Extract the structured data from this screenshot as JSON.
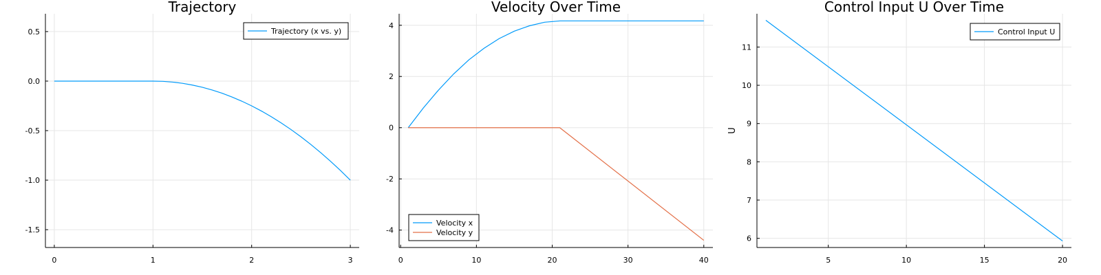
{
  "colors": {
    "series1": "#009AFA",
    "series2": "#E36F47",
    "grid": "#E6E6E6"
  },
  "chart_data": [
    {
      "type": "line",
      "title": "Trajectory",
      "xlabel": "",
      "ylabel": "",
      "xlim": [
        -0.09,
        3.09
      ],
      "ylim": [
        -1.68,
        0.68
      ],
      "xticks": [
        0,
        1,
        2,
        3
      ],
      "yticks": [
        -1.5,
        -1.0,
        -0.5,
        0.0,
        0.5
      ],
      "ytick_labels": [
        "-1.5",
        "-1.0",
        "-0.5",
        "0.0",
        "0.5"
      ],
      "grid": true,
      "legend": "top-right",
      "series": [
        {
          "name": "Trajectory (x vs. y)",
          "color": "#009AFA",
          "x": [
            0,
            0.25,
            0.5,
            0.75,
            1.0,
            1.1,
            1.2,
            1.3,
            1.4,
            1.5,
            1.6,
            1.7,
            1.8,
            1.9,
            2.0,
            2.1,
            2.2,
            2.3,
            2.4,
            2.5,
            2.6,
            2.7,
            2.8,
            2.9,
            3.0
          ],
          "y": [
            0,
            0,
            0,
            0,
            0,
            -0.0025,
            -0.01,
            -0.0225,
            -0.04,
            -0.0625,
            -0.09,
            -0.1225,
            -0.16,
            -0.2025,
            -0.25,
            -0.3025,
            -0.36,
            -0.4225,
            -0.49,
            -0.5625,
            -0.64,
            -0.7225,
            -0.81,
            -0.9025,
            -1.0
          ]
        }
      ]
    },
    {
      "type": "line",
      "title": "Velocity Over Time",
      "xlabel": "",
      "ylabel": "",
      "xlim": [
        -0.2,
        41.2
      ],
      "ylim": [
        -4.68,
        4.45
      ],
      "xticks": [
        0,
        10,
        20,
        30,
        40
      ],
      "yticks": [
        -4,
        -2,
        0,
        2,
        4
      ],
      "ytick_labels": [
        "-4",
        "-2",
        "0",
        "2",
        "4"
      ],
      "grid": true,
      "legend": "bottom-left",
      "series": [
        {
          "name": "Velocity x",
          "color": "#009AFA",
          "x": [
            1,
            3,
            5,
            7,
            9,
            11,
            13,
            15,
            17,
            19,
            21,
            40
          ],
          "y": [
            0,
            0.77,
            1.47,
            2.1,
            2.65,
            3.1,
            3.48,
            3.77,
            3.98,
            4.12,
            4.17,
            4.17
          ]
        },
        {
          "name": "Velocity y",
          "color": "#E36F47",
          "x": [
            1,
            21,
            40
          ],
          "y": [
            0,
            0,
            -4.4
          ]
        }
      ]
    },
    {
      "type": "line",
      "title": "Control Input U Over Time",
      "xlabel": "",
      "ylabel": "U",
      "xlim": [
        0.43,
        20.57
      ],
      "ylim": [
        5.76,
        11.87
      ],
      "xticks": [
        5,
        10,
        15,
        20
      ],
      "yticks": [
        6,
        7,
        8,
        9,
        10,
        11
      ],
      "ytick_labels": [
        "6",
        "7",
        "8",
        "9",
        "10",
        "11"
      ],
      "grid": true,
      "legend": "top-right",
      "series": [
        {
          "name": "Control Input U",
          "color": "#009AFA",
          "x": [
            1,
            20
          ],
          "y": [
            11.7,
            5.93
          ]
        }
      ]
    }
  ]
}
